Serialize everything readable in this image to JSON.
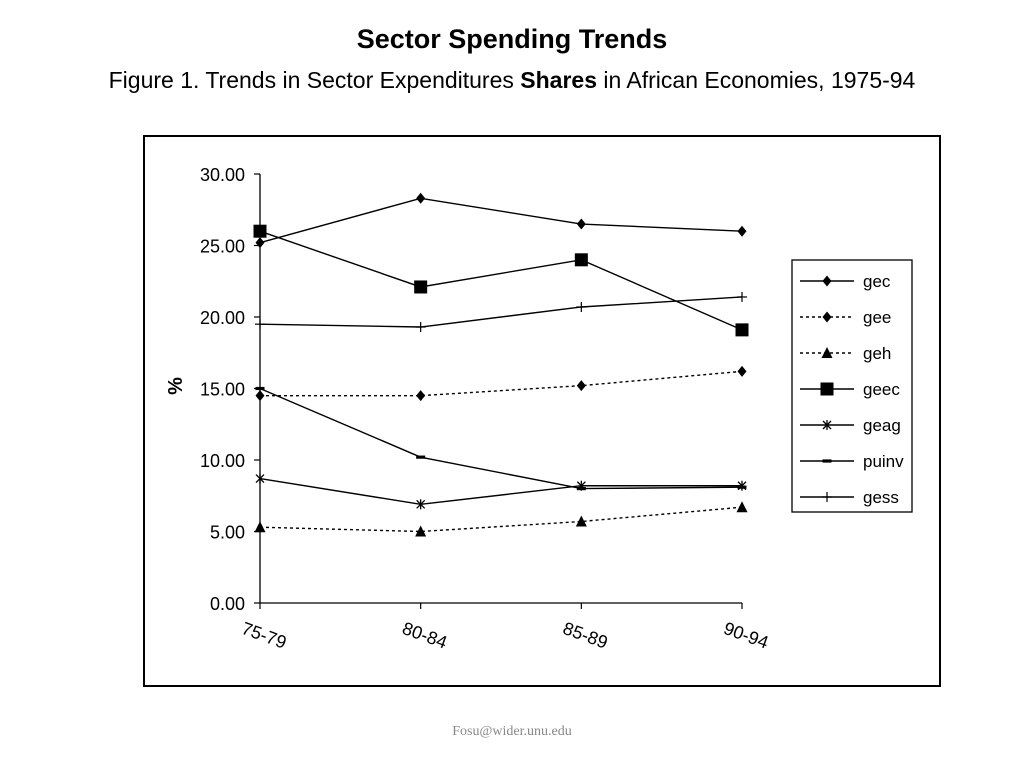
{
  "header": {
    "title": "Sector Spending Trends",
    "subtitle_pre": "Figure 1. Trends in Sector Expenditures ",
    "subtitle_bold": "Shares",
    "subtitle_post": " in African Economies, 1975-94"
  },
  "footer": {
    "text": "Fosu@wider.unu.edu"
  },
  "chart_data": {
    "type": "line",
    "title": "",
    "xlabel": "",
    "ylabel": "%",
    "categories": [
      "75-79",
      "80-84",
      "85-89",
      "90-94"
    ],
    "ylim": [
      0,
      30
    ],
    "yticks": [
      "0.00",
      "5.00",
      "10.00",
      "15.00",
      "20.00",
      "25.00",
      "30.00"
    ],
    "legend_position": "right",
    "grid": false,
    "series": [
      {
        "name": "gec",
        "values": [
          25.2,
          28.3,
          26.5,
          26.0
        ],
        "marker": "diamond",
        "dash": "solid"
      },
      {
        "name": "gee",
        "values": [
          14.5,
          14.5,
          15.2,
          16.2
        ],
        "marker": "diamond",
        "dash": "dotted"
      },
      {
        "name": "geh",
        "values": [
          5.3,
          5.0,
          5.7,
          6.7
        ],
        "marker": "triangle",
        "dash": "dotted"
      },
      {
        "name": "geec",
        "values": [
          26.0,
          22.1,
          24.0,
          19.1
        ],
        "marker": "square",
        "dash": "solid"
      },
      {
        "name": "geag",
        "values": [
          8.7,
          6.9,
          8.2,
          8.2
        ],
        "marker": "star",
        "dash": "solid"
      },
      {
        "name": "puinv",
        "values": [
          15.0,
          10.2,
          8.0,
          8.1
        ],
        "marker": "dash",
        "dash": "solid"
      },
      {
        "name": "gess",
        "values": [
          19.5,
          19.3,
          20.7,
          21.4
        ],
        "marker": "plus",
        "dash": "solid"
      }
    ]
  }
}
